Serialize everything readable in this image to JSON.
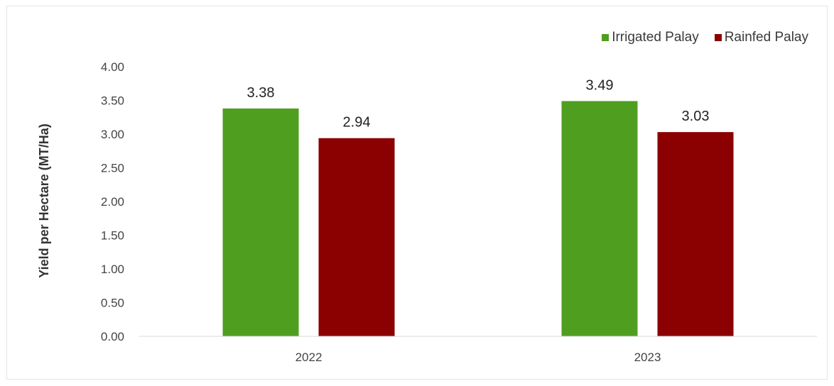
{
  "chart_data": {
    "type": "bar",
    "categories": [
      "2022",
      "2023"
    ],
    "series": [
      {
        "name": "Irrigated Palay",
        "values": [
          3.38,
          3.49
        ],
        "color": "#4f9e1f"
      },
      {
        "name": "Rainfed Palay",
        "values": [
          2.94,
          3.03
        ],
        "color": "#8b0000"
      }
    ],
    "data_labels": [
      [
        "3.38",
        "3.49"
      ],
      [
        "2.94",
        "3.03"
      ]
    ],
    "title": "",
    "xlabel": "",
    "ylabel": "Yield per Hectare (MT/Ha)",
    "ylim": [
      0,
      4
    ],
    "yticks": [
      "0.00",
      "0.50",
      "1.00",
      "1.50",
      "2.00",
      "2.50",
      "3.00",
      "3.50",
      "4.00"
    ],
    "grid": false,
    "legend_position": "top-right"
  }
}
